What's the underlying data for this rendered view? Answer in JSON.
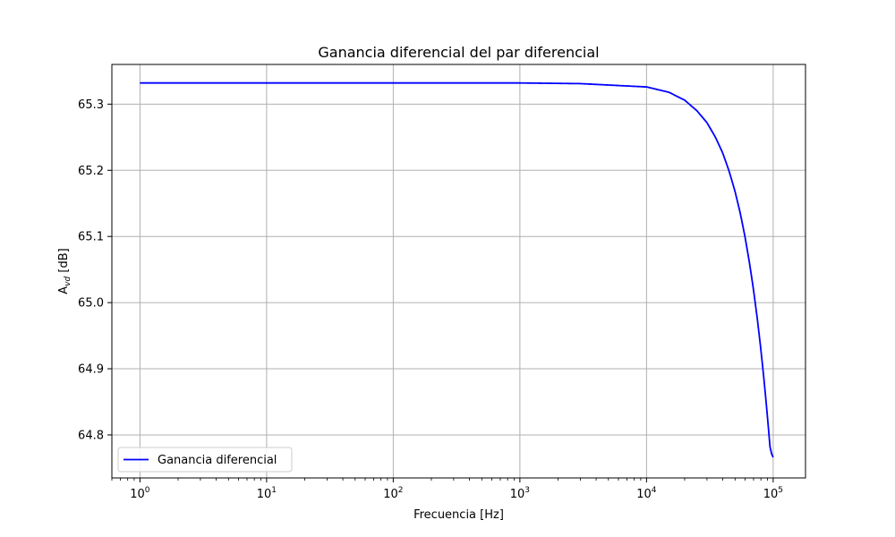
{
  "chart_data": {
    "type": "line",
    "title": "Ganancia diferencial del par diferencial",
    "xlabel": "Frecuencia [Hz]",
    "ylabel": {
      "main": "A",
      "sub": "vd",
      "unit": " [dB]"
    },
    "xscale": "log",
    "xlim": [
      0.6,
      180000
    ],
    "ylim": [
      64.735,
      65.36
    ],
    "grid": true,
    "legend_position": "lower-left",
    "x_ticks": [
      {
        "value": 1,
        "base": "10",
        "exp": "0"
      },
      {
        "value": 10,
        "base": "10",
        "exp": "1"
      },
      {
        "value": 100,
        "base": "10",
        "exp": "2"
      },
      {
        "value": 1000,
        "base": "10",
        "exp": "3"
      },
      {
        "value": 10000,
        "base": "10",
        "exp": "4"
      },
      {
        "value": 100000,
        "base": "10",
        "exp": "5"
      }
    ],
    "y_ticks": [
      {
        "value": 64.8,
        "label": "64.8"
      },
      {
        "value": 64.9,
        "label": "64.9"
      },
      {
        "value": 65.0,
        "label": "65.0"
      },
      {
        "value": 65.1,
        "label": "65.1"
      },
      {
        "value": 65.2,
        "label": "65.2"
      },
      {
        "value": 65.3,
        "label": "65.3"
      }
    ],
    "series": [
      {
        "name": "Ganancia diferencial",
        "color": "#0000ff",
        "x": [
          1,
          10,
          100,
          1000,
          3000,
          10000,
          15000,
          20000,
          25000,
          30000,
          35000,
          40000,
          45000,
          50000,
          55000,
          60000,
          65000,
          70000,
          75000,
          80000,
          85000,
          90000,
          95000,
          100000
        ],
        "y": [
          65.332,
          65.332,
          65.332,
          65.332,
          65.331,
          65.326,
          65.318,
          65.306,
          65.29,
          65.272,
          65.25,
          65.226,
          65.198,
          65.168,
          65.135,
          65.099,
          65.06,
          65.019,
          64.975,
          64.929,
          64.88,
          64.829,
          64.776,
          64.766
        ]
      }
    ]
  }
}
